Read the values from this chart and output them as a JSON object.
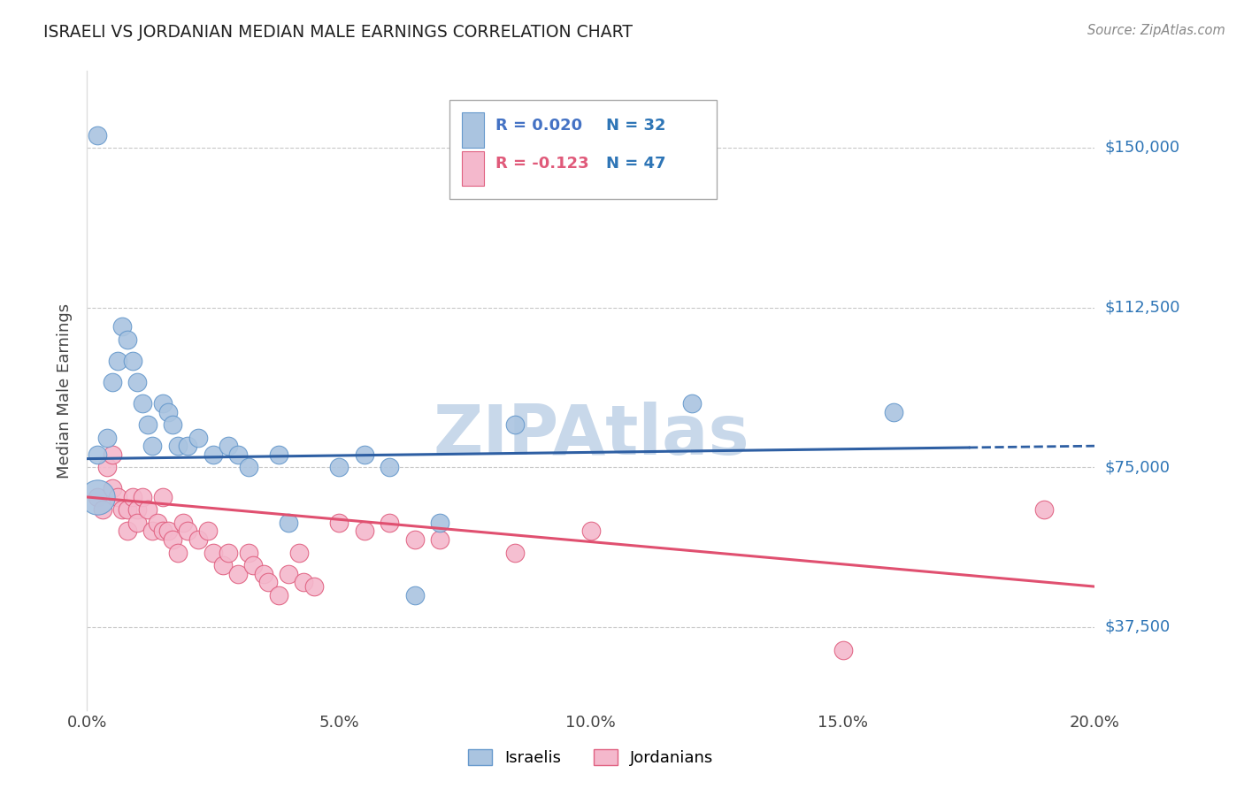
{
  "title": "ISRAELI VS JORDANIAN MEDIAN MALE EARNINGS CORRELATION CHART",
  "source": "Source: ZipAtlas.com",
  "ylabel": "Median Male Earnings",
  "xlim": [
    0.0,
    0.2
  ],
  "ylim": [
    18000,
    168000
  ],
  "yticks": [
    37500,
    75000,
    112500,
    150000
  ],
  "ytick_labels": [
    "$37,500",
    "$75,000",
    "$112,500",
    "$150,000"
  ],
  "xticks": [
    0.0,
    0.05,
    0.1,
    0.15,
    0.2
  ],
  "xtick_labels": [
    "0.0%",
    "5.0%",
    "10.0%",
    "15.0%",
    "20.0%"
  ],
  "corr_box": {
    "israeli_R": 0.02,
    "israeli_N": 32,
    "jordanian_R": -0.123,
    "jordanian_N": 47,
    "color_R_israeli": "#4472c4",
    "color_R_jordanian": "#e05a7a",
    "color_N_israeli": "#2e75b6",
    "color_N_jordanian": "#2e75b6"
  },
  "israelis": {
    "color": "#aac4e0",
    "edge_color": "#6699cc",
    "trend_color": "#2e5fa3",
    "points": [
      [
        0.002,
        78000
      ],
      [
        0.004,
        82000
      ],
      [
        0.005,
        95000
      ],
      [
        0.006,
        100000
      ],
      [
        0.007,
        108000
      ],
      [
        0.008,
        105000
      ],
      [
        0.009,
        100000
      ],
      [
        0.01,
        95000
      ],
      [
        0.011,
        90000
      ],
      [
        0.012,
        85000
      ],
      [
        0.013,
        80000
      ],
      [
        0.015,
        90000
      ],
      [
        0.016,
        88000
      ],
      [
        0.017,
        85000
      ],
      [
        0.018,
        80000
      ],
      [
        0.02,
        80000
      ],
      [
        0.022,
        82000
      ],
      [
        0.025,
        78000
      ],
      [
        0.028,
        80000
      ],
      [
        0.03,
        78000
      ],
      [
        0.032,
        75000
      ],
      [
        0.038,
        78000
      ],
      [
        0.04,
        62000
      ],
      [
        0.05,
        75000
      ],
      [
        0.055,
        78000
      ],
      [
        0.06,
        75000
      ],
      [
        0.065,
        45000
      ],
      [
        0.07,
        62000
      ],
      [
        0.085,
        85000
      ],
      [
        0.12,
        90000
      ],
      [
        0.16,
        88000
      ],
      [
        0.002,
        153000
      ]
    ],
    "large_bubble": [
      0.002,
      68000
    ],
    "large_size": 800
  },
  "jordanians": {
    "color": "#f4b8cc",
    "edge_color": "#e06080",
    "trend_color": "#e05070",
    "points": [
      [
        0.002,
        68000
      ],
      [
        0.003,
        65000
      ],
      [
        0.004,
        75000
      ],
      [
        0.005,
        78000
      ],
      [
        0.005,
        70000
      ],
      [
        0.006,
        68000
      ],
      [
        0.007,
        65000
      ],
      [
        0.008,
        65000
      ],
      [
        0.008,
        60000
      ],
      [
        0.009,
        68000
      ],
      [
        0.01,
        65000
      ],
      [
        0.01,
        62000
      ],
      [
        0.011,
        68000
      ],
      [
        0.012,
        65000
      ],
      [
        0.013,
        60000
      ],
      [
        0.014,
        62000
      ],
      [
        0.015,
        68000
      ],
      [
        0.015,
        60000
      ],
      [
        0.016,
        60000
      ],
      [
        0.017,
        58000
      ],
      [
        0.018,
        55000
      ],
      [
        0.019,
        62000
      ],
      [
        0.02,
        60000
      ],
      [
        0.022,
        58000
      ],
      [
        0.024,
        60000
      ],
      [
        0.025,
        55000
      ],
      [
        0.027,
        52000
      ],
      [
        0.028,
        55000
      ],
      [
        0.03,
        50000
      ],
      [
        0.032,
        55000
      ],
      [
        0.033,
        52000
      ],
      [
        0.035,
        50000
      ],
      [
        0.036,
        48000
      ],
      [
        0.038,
        45000
      ],
      [
        0.04,
        50000
      ],
      [
        0.042,
        55000
      ],
      [
        0.043,
        48000
      ],
      [
        0.045,
        47000
      ],
      [
        0.05,
        62000
      ],
      [
        0.055,
        60000
      ],
      [
        0.06,
        62000
      ],
      [
        0.065,
        58000
      ],
      [
        0.07,
        58000
      ],
      [
        0.085,
        55000
      ],
      [
        0.1,
        60000
      ],
      [
        0.15,
        32000
      ],
      [
        0.19,
        65000
      ]
    ]
  },
  "background_color": "#ffffff",
  "grid_color": "#c8c8c8",
  "title_color": "#222222",
  "axis_label_color": "#444444",
  "ytick_color": "#2e75b6",
  "watermark_text": "ZIPAtlas",
  "watermark_color": "#c8d8ea"
}
